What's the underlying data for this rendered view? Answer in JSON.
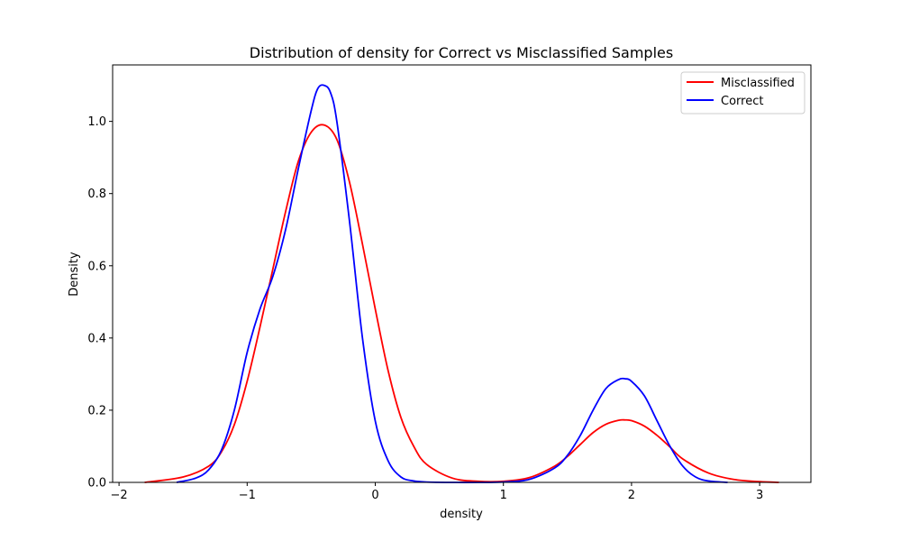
{
  "chart_data": {
    "type": "line",
    "title": "Distribution of density for Correct vs Misclassified Samples",
    "xlabel": "density",
    "ylabel": "Density",
    "xlim": [
      -2.05,
      3.4
    ],
    "ylim": [
      0,
      1.1564
    ],
    "xticks": [
      -2,
      -1,
      0,
      1,
      2,
      3
    ],
    "yticks": [
      0.0,
      0.2,
      0.4,
      0.6,
      0.8,
      1.0
    ],
    "xtick_labels": [
      "−2",
      "−1",
      "0",
      "1",
      "2",
      "3"
    ],
    "ytick_labels": [
      "0.0",
      "0.2",
      "0.4",
      "0.6",
      "0.8",
      "1.0"
    ],
    "grid": false,
    "legend_position": "top-right",
    "series": [
      {
        "name": "Misclassified",
        "color": "#ff0000",
        "x": [
          -1.8,
          -1.5,
          -1.3,
          -1.2,
          -1.1,
          -1.0,
          -0.9,
          -0.8,
          -0.7,
          -0.6,
          -0.5,
          -0.4,
          -0.3,
          -0.2,
          -0.1,
          0.0,
          0.1,
          0.2,
          0.3,
          0.4,
          0.6,
          0.8,
          1.0,
          1.2,
          1.4,
          1.5,
          1.6,
          1.7,
          1.8,
          1.9,
          1.95,
          2.0,
          2.1,
          2.2,
          2.3,
          2.4,
          2.6,
          2.8,
          3.0,
          3.15
        ],
        "y": [
          0.0,
          0.015,
          0.045,
          0.085,
          0.16,
          0.28,
          0.43,
          0.59,
          0.75,
          0.89,
          0.97,
          0.99,
          0.95,
          0.83,
          0.66,
          0.48,
          0.31,
          0.18,
          0.1,
          0.05,
          0.012,
          0.003,
          0.003,
          0.013,
          0.045,
          0.072,
          0.105,
          0.138,
          0.161,
          0.172,
          0.173,
          0.171,
          0.156,
          0.13,
          0.098,
          0.065,
          0.026,
          0.008,
          0.002,
          0.0
        ]
      },
      {
        "name": "Correct",
        "color": "#0000ff",
        "x": [
          -1.55,
          -1.4,
          -1.3,
          -1.2,
          -1.1,
          -1.0,
          -0.9,
          -0.8,
          -0.7,
          -0.6,
          -0.5,
          -0.45,
          -0.4,
          -0.35,
          -0.3,
          -0.2,
          -0.1,
          0.0,
          0.1,
          0.2,
          0.3,
          0.4,
          0.6,
          0.8,
          1.0,
          1.2,
          1.4,
          1.5,
          1.6,
          1.7,
          1.8,
          1.9,
          1.95,
          2.0,
          2.1,
          2.2,
          2.3,
          2.4,
          2.5,
          2.6,
          2.75
        ],
        "y": [
          0.0,
          0.012,
          0.035,
          0.09,
          0.2,
          0.36,
          0.48,
          0.57,
          0.7,
          0.87,
          1.03,
          1.09,
          1.1,
          1.08,
          1.0,
          0.72,
          0.4,
          0.17,
          0.06,
          0.015,
          0.004,
          0.001,
          0.0,
          0.0,
          0.001,
          0.008,
          0.04,
          0.075,
          0.13,
          0.2,
          0.26,
          0.285,
          0.287,
          0.28,
          0.24,
          0.17,
          0.1,
          0.045,
          0.015,
          0.004,
          0.0
        ]
      }
    ]
  }
}
